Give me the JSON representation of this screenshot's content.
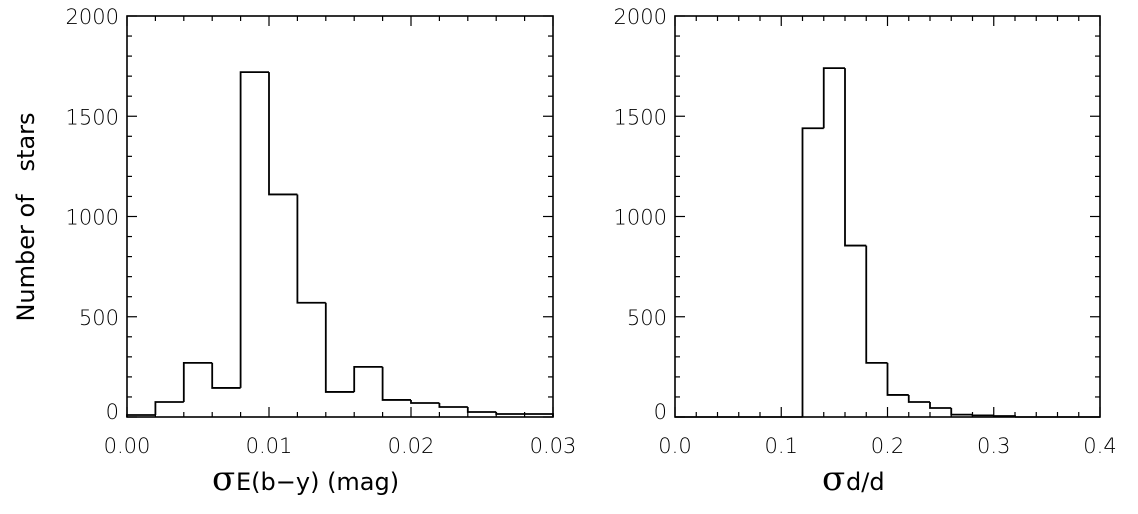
{
  "chart_data": [
    {
      "type": "histogram",
      "panel": "left",
      "xlabel_symbol": "σ",
      "xlabel": "E(b−y) (mag)",
      "ylabel": "Number of   stars",
      "xlim": [
        0.0,
        0.03
      ],
      "ylim": [
        0,
        2000
      ],
      "xticks": [
        "0.00",
        "0.01",
        "0.02",
        "0.03"
      ],
      "yticks": [
        "0",
        "500",
        "1000",
        "1500",
        "2000"
      ],
      "bin_edges": [
        0.0,
        0.002,
        0.004,
        0.006,
        0.008,
        0.01,
        0.012,
        0.014,
        0.016,
        0.018,
        0.02,
        0.022,
        0.024,
        0.026,
        0.028,
        0.03
      ],
      "counts": [
        10,
        75,
        270,
        145,
        1720,
        1110,
        570,
        125,
        250,
        85,
        70,
        50,
        25,
        15,
        15
      ]
    },
    {
      "type": "histogram",
      "panel": "right",
      "xlabel_symbol": "σ",
      "xlabel": "d/d",
      "ylabel": "",
      "xlim": [
        0.0,
        0.4
      ],
      "ylim": [
        0,
        2000
      ],
      "xticks": [
        "0.0",
        "0.1",
        "0.2",
        "0.3",
        "0.4"
      ],
      "yticks": [
        "0",
        "500",
        "1000",
        "1500",
        "2000"
      ],
      "bin_edges": [
        0.12,
        0.14,
        0.16,
        0.18,
        0.2,
        0.22,
        0.24,
        0.26,
        0.28,
        0.3,
        0.32
      ],
      "counts": [
        1440,
        1740,
        855,
        270,
        110,
        75,
        45,
        12,
        8,
        5
      ]
    }
  ]
}
